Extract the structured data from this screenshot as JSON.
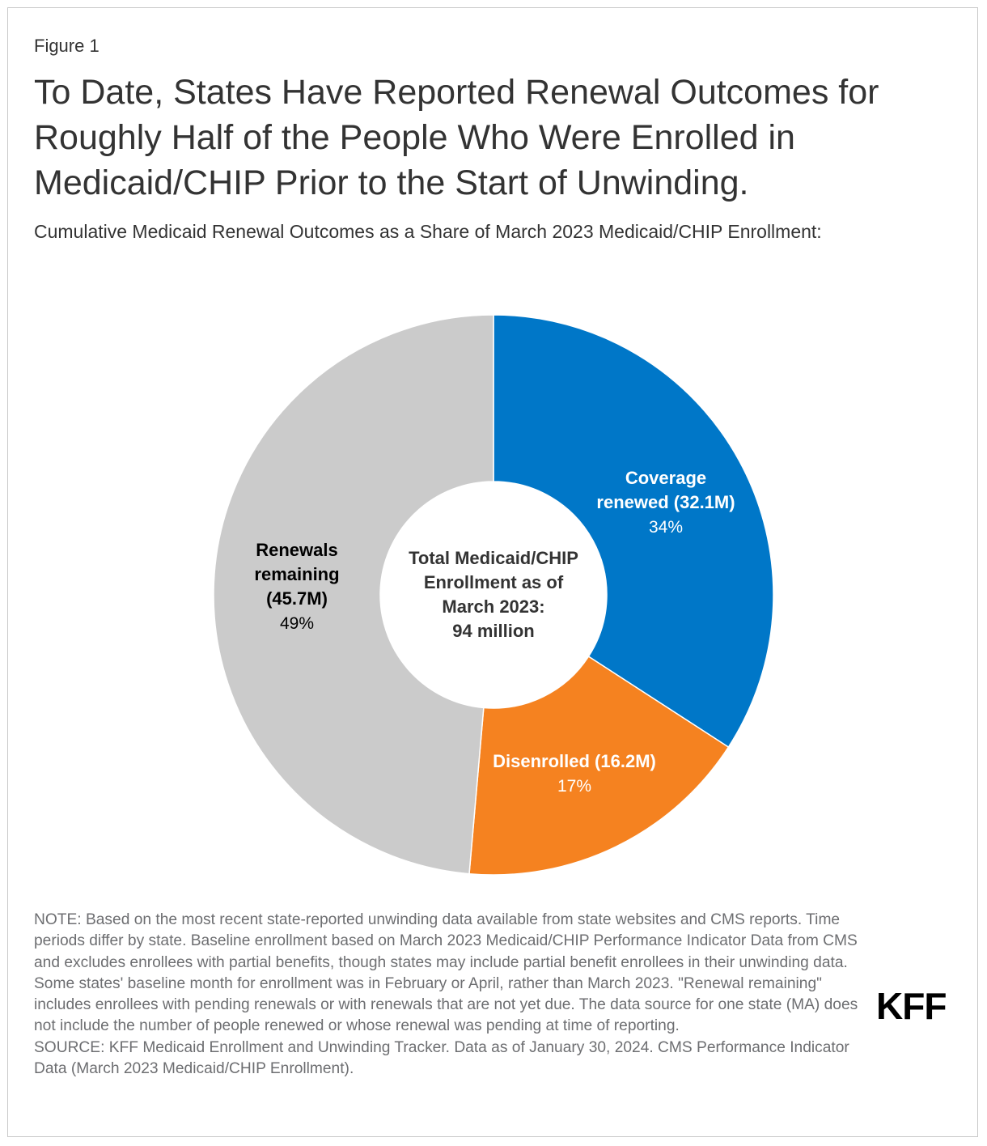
{
  "figure_label": "Figure 1",
  "title": "To Date, States Have Reported Renewal Outcomes for Roughly Half of the People Who Were Enrolled in Medicaid/CHIP Prior to the Start of Unwinding.",
  "subtitle": "Cumulative Medicaid Renewal Outcomes as a Share of March 2023 Medicaid/CHIP Enrollment:",
  "chart_data": {
    "type": "pie",
    "variant": "donut",
    "title": "Cumulative Medicaid Renewal Outcomes as a Share of March 2023 Medicaid/CHIP Enrollment:",
    "center_label": [
      "Total Medicaid/CHIP",
      "Enrollment as of",
      "March 2023:",
      "94 million"
    ],
    "slices": [
      {
        "name": "Coverage renewed",
        "label_lines": [
          "Coverage",
          "renewed (32.1M)"
        ],
        "value_millions": 32.1,
        "percent": 34,
        "percent_label": "34%",
        "color": "#0077c8",
        "label_color": "#ffffff"
      },
      {
        "name": "Disenrolled",
        "label_lines": [
          "Disenrolled (16.2M)"
        ],
        "value_millions": 16.2,
        "percent": 17,
        "percent_label": "17%",
        "color": "#f58220",
        "label_color": "#ffffff"
      },
      {
        "name": "Renewals remaining",
        "label_lines": [
          "Renewals",
          "remaining",
          "(45.7M)"
        ],
        "value_millions": 45.7,
        "percent": 49,
        "percent_label": "49%",
        "color": "#cbcbcb",
        "label_color": "#000000"
      }
    ]
  },
  "notes": {
    "note": "NOTE: Based on the most recent state-reported unwinding data available from state websites and CMS reports. Time periods differ by state. Baseline enrollment based on March 2023 Medicaid/CHIP Performance Indicator Data from CMS and excludes enrollees with partial benefits, though states may include partial benefit enrollees in their unwinding data. Some states' baseline month for enrollment was in February or April, rather than March 2023. \"Renewal remaining\" includes enrollees with pending renewals or with renewals that are not yet due. The data source for one state (MA) does not include the number of people renewed or whose renewal was pending at time of reporting.",
    "source": "SOURCE: KFF Medicaid Enrollment and Unwinding Tracker. Data as of January 30, 2024. CMS Performance Indicator Data (March 2023 Medicaid/CHIP Enrollment)."
  },
  "logo": "KFF"
}
